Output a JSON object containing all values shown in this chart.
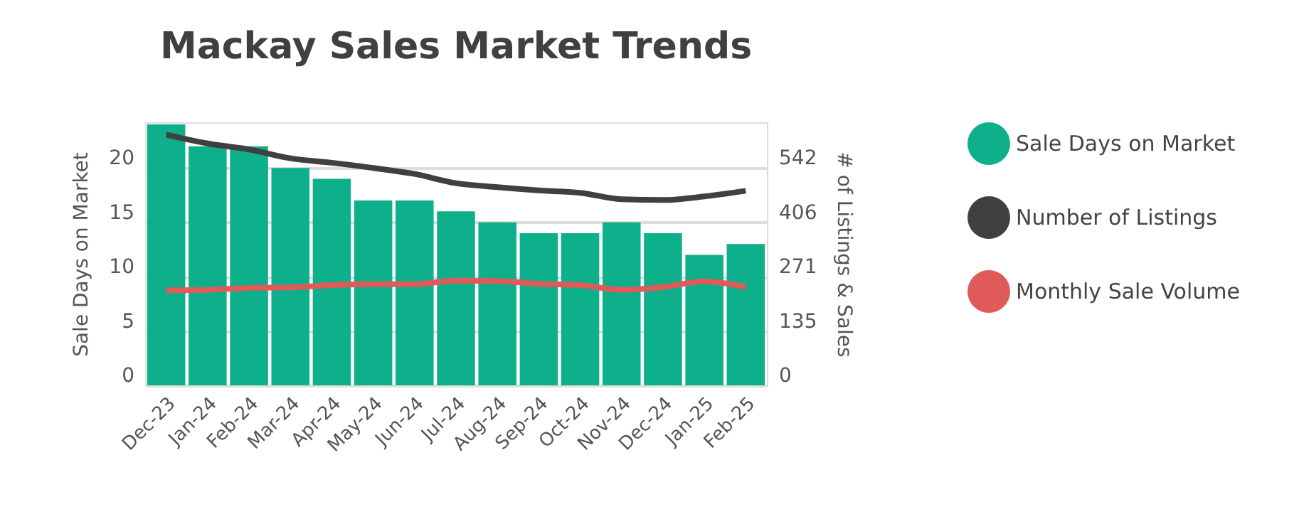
{
  "chart_data": {
    "type": "bar",
    "title": "Mackay Sales Market Trends",
    "ylabel": "Sale Days on Market",
    "y2label": "# of Listings & Sales",
    "categories": [
      "Dec-23",
      "Jan-24",
      "Feb-24",
      "Mar-24",
      "Apr-24",
      "May-24",
      "Jun-24",
      "Jul-24",
      "Aug-24",
      "Sep-24",
      "Oct-24",
      "Nov-24",
      "Dec-24",
      "Jan-25",
      "Feb-25"
    ],
    "series": [
      {
        "name": "Sale Days on Market",
        "color": "#0db08b",
        "values": [
          24,
          22,
          22,
          20,
          19,
          17,
          17,
          16,
          15,
          14,
          14,
          15,
          14,
          12,
          13
        ]
      },
      {
        "name": "Number of Listings",
        "type": "line",
        "axis": "y2",
        "color": "#404040",
        "values": [
          625,
          603,
          588,
          566,
          555,
          542,
          527,
          504,
          494,
          486,
          480,
          464,
          462,
          471,
          485
        ]
      },
      {
        "name": "Monthly Sale Volume",
        "type": "line",
        "axis": "y2",
        "color": "#e05a5a",
        "values": [
          237,
          238,
          243,
          244,
          250,
          252,
          252,
          261,
          260,
          253,
          250,
          238,
          245,
          259,
          245
        ]
      }
    ],
    "ylim": [
      0,
      24.2
    ],
    "yticks": [
      0,
      5,
      10,
      15,
      20
    ],
    "y2lim": [
      0,
      655.8
    ],
    "y2ticks": [
      0,
      {
        "value": 135.5,
        "label": "135"
      },
      271,
      {
        "value": 406.5,
        "label": "406"
      },
      542
    ],
    "grid": "y",
    "legend": "right"
  }
}
